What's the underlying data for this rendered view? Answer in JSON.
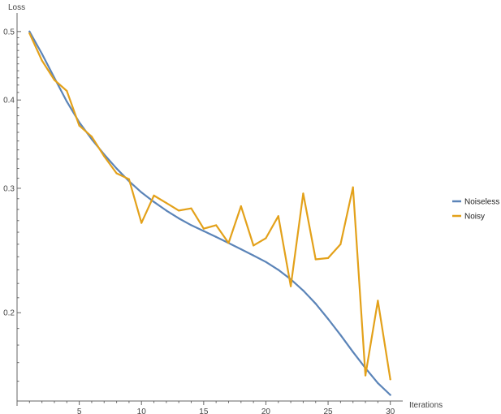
{
  "chart_data": {
    "type": "line",
    "title": "",
    "xlabel": "Iterations",
    "ylabel": "Loss",
    "xlim": [
      0,
      31
    ],
    "ylim": [
      0.15,
      0.52
    ],
    "y_scale": "log",
    "grid": false,
    "legend_position": "right",
    "x_ticks": [
      5,
      10,
      15,
      20,
      25,
      30
    ],
    "x_tick_labels": [
      "5",
      "10",
      "15",
      "20",
      "25",
      "30"
    ],
    "y_ticks": [
      0.2,
      0.3,
      0.4,
      0.5
    ],
    "y_tick_labels": [
      "0.2",
      "0.3",
      "0.4",
      "0.5"
    ],
    "x": [
      1,
      2,
      3,
      4,
      5,
      6,
      7,
      8,
      9,
      10,
      11,
      12,
      13,
      14,
      15,
      16,
      17,
      18,
      19,
      20,
      21,
      22,
      23,
      24,
      25,
      26,
      27,
      28,
      29,
      30
    ],
    "series": [
      {
        "name": "Noiseless",
        "color": "#5B84B8",
        "values": [
          0.5,
          0.465,
          0.43,
          0.398,
          0.372,
          0.352,
          0.335,
          0.32,
          0.307,
          0.296,
          0.287,
          0.279,
          0.272,
          0.266,
          0.261,
          0.256,
          0.251,
          0.246,
          0.241,
          0.236,
          0.23,
          0.223,
          0.215,
          0.206,
          0.196,
          0.186,
          0.176,
          0.167,
          0.159,
          0.153
        ]
      },
      {
        "name": "Noisy",
        "color": "#E3A11A",
        "values": [
          0.497,
          0.455,
          0.427,
          0.412,
          0.368,
          0.355,
          0.333,
          0.315,
          0.309,
          0.268,
          0.293,
          0.286,
          0.279,
          0.281,
          0.263,
          0.266,
          0.251,
          0.283,
          0.249,
          0.255,
          0.274,
          0.218,
          0.295,
          0.238,
          0.239,
          0.25,
          0.301,
          0.163,
          0.208,
          0.161
        ]
      }
    ]
  }
}
